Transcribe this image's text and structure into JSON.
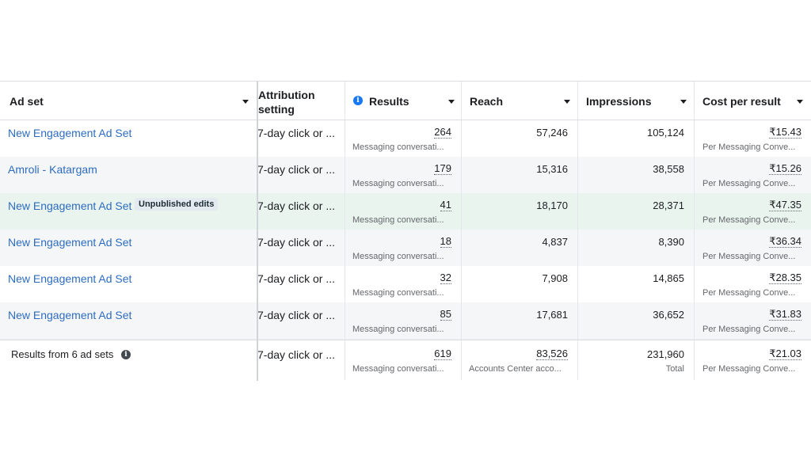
{
  "columns": {
    "ad_set": "Ad set",
    "attribution": "Attribution setting",
    "results": "Results",
    "reach": "Reach",
    "impressions": "Impressions",
    "cost": "Cost per result"
  },
  "rows": [
    {
      "name": "New Engagement Ad Set",
      "badge": "",
      "attribution": "7-day click or ...",
      "results": "264",
      "results_sub": "Messaging conversati...",
      "reach": "57,246",
      "impressions": "105,124",
      "cost": "₹15.43",
      "cost_sub": "Per Messaging Conve..."
    },
    {
      "name": "Amroli - Katargam",
      "badge": "",
      "attribution": "7-day click or ...",
      "results": "179",
      "results_sub": "Messaging conversati...",
      "reach": "15,316",
      "impressions": "38,558",
      "cost": "₹15.26",
      "cost_sub": "Per Messaging Conve..."
    },
    {
      "name": "New Engagement Ad Set",
      "badge": "Unpublished edits",
      "attribution": "7-day click or ...",
      "results": "41",
      "results_sub": "Messaging conversati...",
      "reach": "18,170",
      "impressions": "28,371",
      "cost": "₹47.35",
      "cost_sub": "Per Messaging Conve..."
    },
    {
      "name": "New Engagement Ad Set",
      "badge": "",
      "attribution": "7-day click or ...",
      "results": "18",
      "results_sub": "Messaging conversati...",
      "reach": "4,837",
      "impressions": "8,390",
      "cost": "₹36.34",
      "cost_sub": "Per Messaging Conve..."
    },
    {
      "name": "New Engagement Ad Set",
      "badge": "",
      "attribution": "7-day click or ...",
      "results": "32",
      "results_sub": "Messaging conversati...",
      "reach": "7,908",
      "impressions": "14,865",
      "cost": "₹28.35",
      "cost_sub": "Per Messaging Conve..."
    },
    {
      "name": "New Engagement Ad Set",
      "badge": "",
      "attribution": "7-day click or ...",
      "results": "85",
      "results_sub": "Messaging conversati...",
      "reach": "17,681",
      "impressions": "36,652",
      "cost": "₹31.83",
      "cost_sub": "Per Messaging Conve..."
    }
  ],
  "summary": {
    "label": "Results from 6 ad sets",
    "attribution": "7-day click or ...",
    "results": "619",
    "results_sub": "Messaging conversati...",
    "reach": "83,526",
    "reach_sub": "Accounts Center acco...",
    "impressions": "231,960",
    "impressions_sub": "Total",
    "cost": "₹21.03",
    "cost_sub": "Per Messaging Conve..."
  },
  "icons": {
    "info": "i",
    "sort": "caret-down-icon"
  },
  "colors": {
    "link": "#2d6cc0",
    "info_icon": "#1877f2",
    "highlight_row": "#e9f4ef"
  }
}
